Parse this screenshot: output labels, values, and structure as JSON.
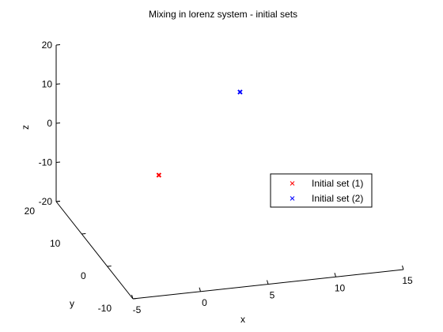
{
  "chart_data": {
    "type": "scatter",
    "projection": "3d",
    "title": "Mixing in lorenz system - initial sets",
    "xlabel": "x",
    "ylabel": "y",
    "zlabel": "z",
    "xlim": [
      -5,
      15
    ],
    "ylim": [
      -10,
      20
    ],
    "zlim": [
      -20,
      20
    ],
    "xticks": [
      "-5",
      "0",
      "5",
      "10",
      "15"
    ],
    "yticks": [
      "-10",
      "0",
      "10",
      "20"
    ],
    "zticks": [
      "-20",
      "-10",
      "0",
      "10",
      "20"
    ],
    "grid": false,
    "legend_position": "right",
    "series": [
      {
        "name": "Initial set (1)",
        "marker": "x",
        "color": "#ff0000",
        "x": [
          -1
        ],
        "y": [
          1
        ],
        "z": [
          1
        ]
      },
      {
        "name": "Initial set (2)",
        "marker": "x",
        "color": "#0000ff",
        "x": [
          5
        ],
        "y": [
          1
        ],
        "z": [
          20
        ]
      }
    ]
  }
}
